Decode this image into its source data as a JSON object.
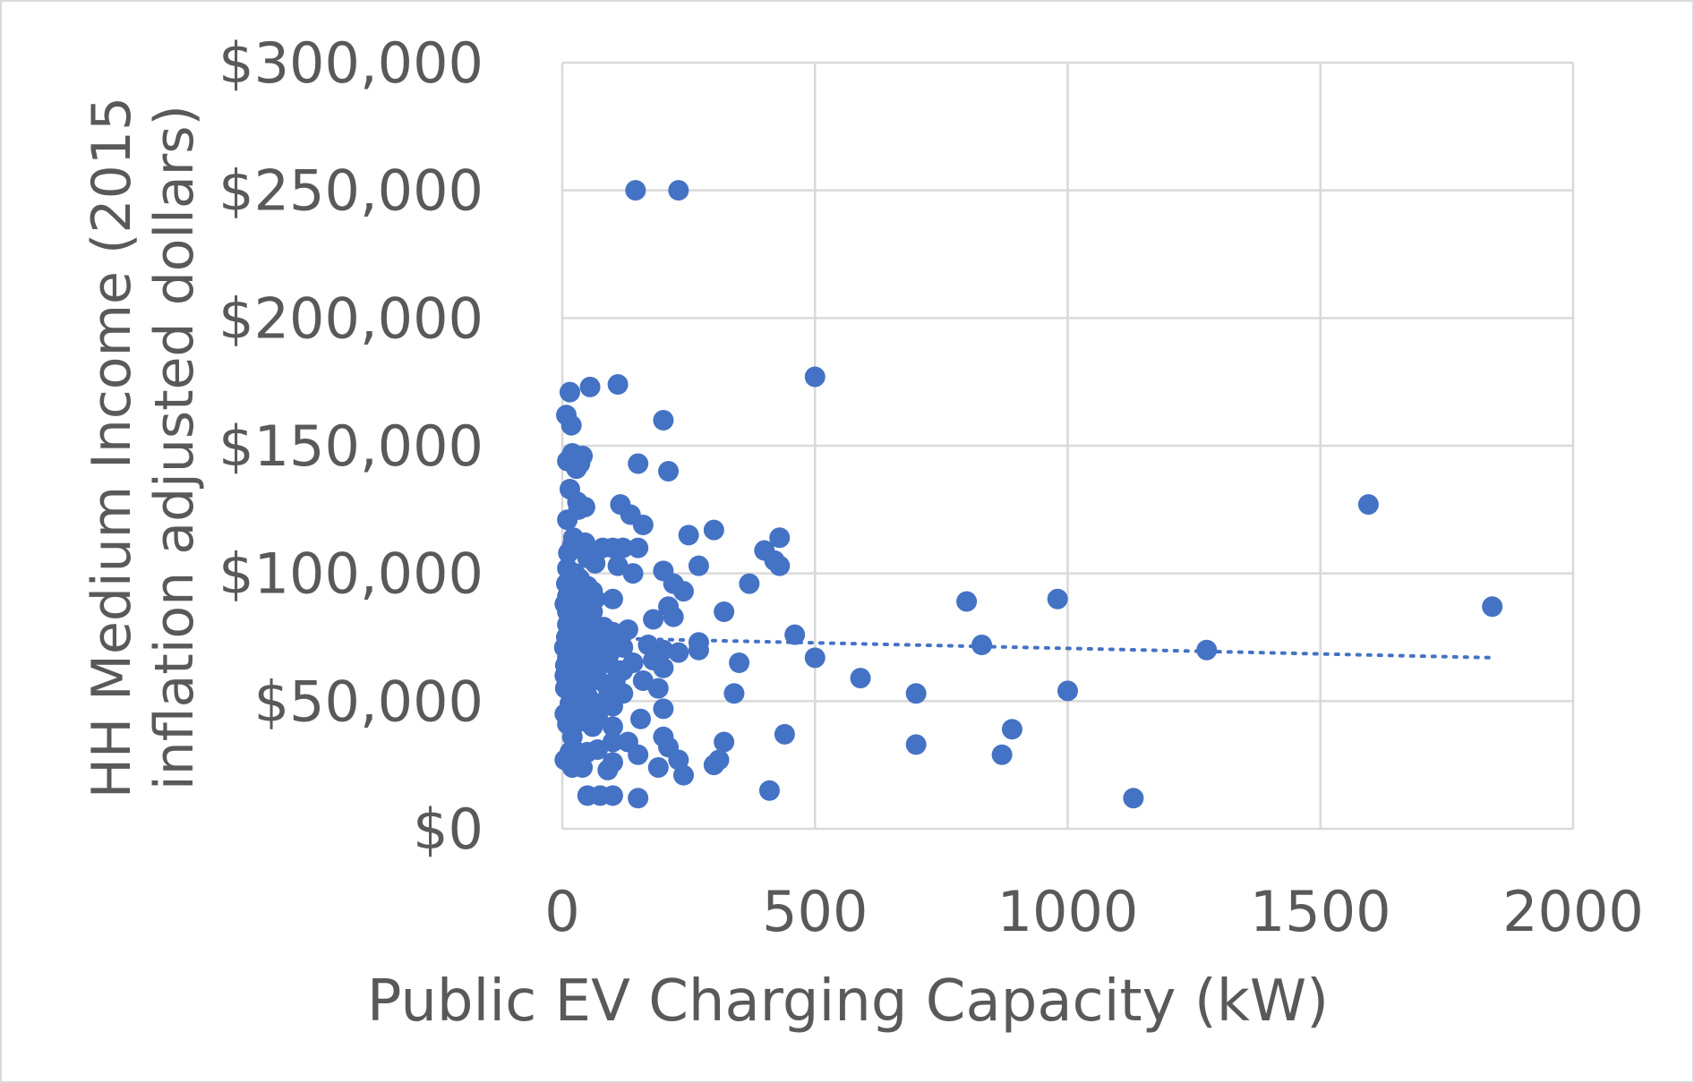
{
  "chart_data": {
    "type": "scatter",
    "xlabel": "Public EV Charging Capacity (kW)",
    "ylabel_line1": "HH Medium Income (2015",
    "ylabel_line2": "inflation adjusted dollars)",
    "xlim": [
      0,
      2000
    ],
    "ylim": [
      0,
      300000
    ],
    "x_ticks": [
      0,
      500,
      1000,
      1500,
      2000
    ],
    "x_tick_labels": [
      "0",
      "500",
      "1000",
      "1500",
      "2000"
    ],
    "y_ticks": [
      0,
      50000,
      100000,
      150000,
      200000,
      250000,
      300000
    ],
    "y_tick_labels": [
      "$0",
      "$50,000",
      "$100,000",
      "$150,000",
      "$200,000",
      "$250,000",
      "$300,000"
    ],
    "grid": true,
    "point_color": "#4472c4",
    "trendline": {
      "style": "dotted",
      "x": [
        0,
        1840
      ],
      "y": [
        75000,
        67000
      ]
    },
    "points": [
      [
        145,
        250000
      ],
      [
        230,
        250000
      ],
      [
        500,
        177000
      ],
      [
        110,
        174000
      ],
      [
        55,
        173000
      ],
      [
        15,
        171000
      ],
      [
        200,
        160000
      ],
      [
        18,
        158000
      ],
      [
        8,
        162000
      ],
      [
        20,
        147000
      ],
      [
        40,
        146000
      ],
      [
        10,
        144000
      ],
      [
        35,
        143000
      ],
      [
        150,
        143000
      ],
      [
        210,
        140000
      ],
      [
        28,
        141000
      ],
      [
        15,
        133000
      ],
      [
        45,
        126000
      ],
      [
        115,
        127000
      ],
      [
        30,
        128000
      ],
      [
        135,
        123000
      ],
      [
        160,
        119000
      ],
      [
        300,
        117000
      ],
      [
        10,
        121000
      ],
      [
        250,
        115000
      ],
      [
        430,
        114000
      ],
      [
        20,
        111000
      ],
      [
        45,
        112000
      ],
      [
        100,
        110000
      ],
      [
        120,
        110000
      ],
      [
        150,
        110000
      ],
      [
        80,
        110000
      ],
      [
        400,
        109000
      ],
      [
        420,
        105000
      ],
      [
        430,
        103000
      ],
      [
        50,
        106000
      ],
      [
        65,
        104000
      ],
      [
        110,
        103000
      ],
      [
        140,
        100000
      ],
      [
        200,
        101000
      ],
      [
        270,
        103000
      ],
      [
        10,
        102000
      ],
      [
        25,
        100000
      ],
      [
        220,
        96000
      ],
      [
        370,
        96000
      ],
      [
        60,
        93000
      ],
      [
        240,
        93000
      ],
      [
        10,
        91000
      ],
      [
        100,
        90000
      ],
      [
        40,
        88000
      ],
      [
        210,
        87000
      ],
      [
        800,
        89000
      ],
      [
        980,
        90000
      ],
      [
        1840,
        87000
      ],
      [
        180,
        82000
      ],
      [
        220,
        83000
      ],
      [
        320,
        85000
      ],
      [
        30,
        82000
      ],
      [
        60,
        85000
      ],
      [
        10,
        80000
      ],
      [
        100,
        77000
      ],
      [
        460,
        76000
      ],
      [
        1595,
        127000
      ],
      [
        270,
        73000
      ],
      [
        40,
        75000
      ],
      [
        830,
        72000
      ],
      [
        1275,
        70000
      ],
      [
        120,
        71000
      ],
      [
        200,
        70000
      ],
      [
        30,
        72000
      ],
      [
        70,
        68000
      ],
      [
        230,
        69000
      ],
      [
        270,
        70000
      ],
      [
        180,
        66000
      ],
      [
        350,
        65000
      ],
      [
        500,
        67000
      ],
      [
        10,
        67000
      ],
      [
        90,
        65000
      ],
      [
        200,
        63000
      ],
      [
        120,
        62000
      ],
      [
        40,
        64000
      ],
      [
        20,
        60000
      ],
      [
        590,
        59000
      ],
      [
        60,
        58000
      ],
      [
        10,
        57000
      ],
      [
        700,
        53000
      ],
      [
        1000,
        54000
      ],
      [
        340,
        53000
      ],
      [
        120,
        53000
      ],
      [
        50,
        52000
      ],
      [
        30,
        54000
      ],
      [
        200,
        47000
      ],
      [
        100,
        48000
      ],
      [
        15,
        49000
      ],
      [
        70,
        44000
      ],
      [
        155,
        43000
      ],
      [
        10,
        41000
      ],
      [
        60,
        40000
      ],
      [
        100,
        40000
      ],
      [
        890,
        39000
      ],
      [
        440,
        37000
      ],
      [
        200,
        36000
      ],
      [
        320,
        34000
      ],
      [
        130,
        34000
      ],
      [
        100,
        34000
      ],
      [
        700,
        33000
      ],
      [
        20,
        36000
      ],
      [
        70,
        31000
      ],
      [
        210,
        32000
      ],
      [
        50,
        30000
      ],
      [
        870,
        29000
      ],
      [
        150,
        29000
      ],
      [
        230,
        27000
      ],
      [
        310,
        27000
      ],
      [
        5,
        27000
      ],
      [
        100,
        26000
      ],
      [
        300,
        25000
      ],
      [
        20,
        24000
      ],
      [
        40,
        24000
      ],
      [
        90,
        23000
      ],
      [
        190,
        24000
      ],
      [
        240,
        21000
      ],
      [
        410,
        15000
      ],
      [
        50,
        13000
      ],
      [
        75,
        13000
      ],
      [
        100,
        13000
      ],
      [
        150,
        12000
      ],
      [
        1130,
        12000
      ],
      [
        5,
        45000
      ],
      [
        15,
        78000
      ],
      [
        25,
        95000
      ],
      [
        35,
        62000
      ],
      [
        45,
        84000
      ],
      [
        55,
        70000
      ],
      [
        65,
        90000
      ],
      [
        5,
        88000
      ],
      [
        12,
        68000
      ],
      [
        22,
        52000
      ],
      [
        32,
        80000
      ],
      [
        42,
        57000
      ],
      [
        8,
        75000
      ],
      [
        18,
        86000
      ],
      [
        28,
        46000
      ],
      [
        38,
        92000
      ],
      [
        48,
        66000
      ],
      [
        58,
        76000
      ],
      [
        68,
        60000
      ],
      [
        78,
        72000
      ],
      [
        88,
        56000
      ],
      [
        6,
        55000
      ],
      [
        14,
        63000
      ],
      [
        24,
        73000
      ],
      [
        34,
        98000
      ],
      [
        44,
        50000
      ],
      [
        54,
        83000
      ],
      [
        64,
        43000
      ],
      [
        4,
        71000
      ],
      [
        16,
        92000
      ],
      [
        26,
        66000
      ],
      [
        36,
        42000
      ],
      [
        46,
        78000
      ],
      [
        56,
        61000
      ],
      [
        82,
        79000
      ],
      [
        92,
        68000
      ],
      [
        105,
        58000
      ],
      [
        12,
        108000
      ],
      [
        22,
        114000
      ],
      [
        32,
        125000
      ],
      [
        8,
        96000
      ],
      [
        18,
        60000
      ],
      [
        42,
        70000
      ],
      [
        62,
        48000
      ],
      [
        72,
        64000
      ],
      [
        84,
        50000
      ],
      [
        96,
        74000
      ],
      [
        110,
        62000
      ],
      [
        130,
        78000
      ],
      [
        140,
        65000
      ],
      [
        160,
        58000
      ],
      [
        170,
        72000
      ],
      [
        190,
        55000
      ],
      [
        6,
        64000
      ],
      [
        10,
        85000
      ],
      [
        20,
        40000
      ],
      [
        30,
        30000
      ],
      [
        15,
        30000
      ],
      [
        25,
        45000
      ],
      [
        5,
        60000
      ],
      [
        35,
        110000
      ],
      [
        50,
        95000
      ]
    ]
  }
}
